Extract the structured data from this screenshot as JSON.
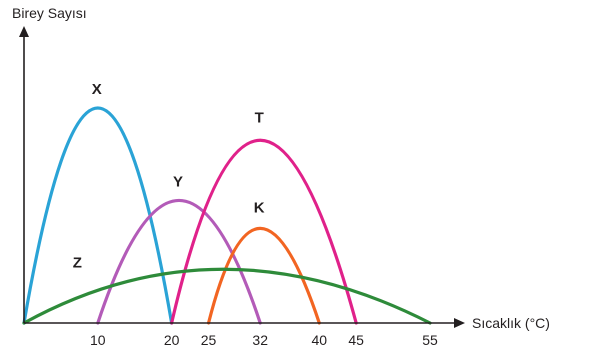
{
  "chart_data": {
    "type": "line",
    "xlabel": "Sıcaklık (°C)",
    "ylabel": "Birey Sayısı",
    "x_ticks": [
      "10",
      "20",
      "25",
      "32",
      "40",
      "45",
      "55"
    ],
    "xlim": [
      0,
      55
    ],
    "ylim": [
      0,
      100
    ],
    "grid": false,
    "legend": "none",
    "series": [
      {
        "name": "X",
        "color": "#2aa3d6",
        "x": [
          0,
          10,
          20
        ],
        "y": [
          0,
          100,
          0
        ]
      },
      {
        "name": "Y",
        "color": "#b35bb8",
        "x": [
          10,
          21,
          32
        ],
        "y": [
          0,
          57,
          0
        ]
      },
      {
        "name": "T",
        "color": "#e0218a",
        "x": [
          20,
          32,
          45
        ],
        "y": [
          0,
          85,
          0
        ]
      },
      {
        "name": "K",
        "color": "#f26522",
        "x": [
          25,
          32,
          40
        ],
        "y": [
          0,
          44,
          0
        ]
      },
      {
        "name": "Z",
        "color": "#2e8b3a",
        "x": [
          0,
          27,
          55
        ],
        "y": [
          0,
          25,
          0
        ]
      }
    ]
  }
}
